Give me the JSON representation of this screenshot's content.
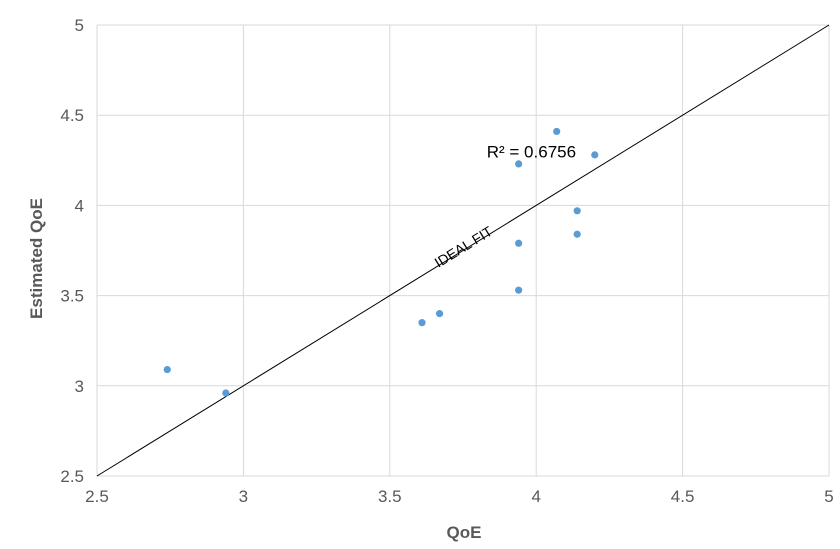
{
  "chart_data": {
    "type": "scatter",
    "xlabel": "QoE",
    "ylabel": "Estimated QoE",
    "xlim": [
      2.5,
      5
    ],
    "ylim": [
      2.5,
      5
    ],
    "x_ticks": [
      "2.5",
      "3",
      "3.5",
      "4",
      "4.5",
      "5"
    ],
    "y_ticks": [
      "2.5",
      "3",
      "3.5",
      "4",
      "4.5",
      "5"
    ],
    "grid": true,
    "legend": "none",
    "colors": {
      "points": "#5B9BD5",
      "grid": "#D9D9D9",
      "ideal_line": "#000000"
    },
    "series": [
      {
        "points": [
          {
            "x": 2.74,
            "y": 3.09
          },
          {
            "x": 2.94,
            "y": 2.96
          },
          {
            "x": 3.61,
            "y": 3.35
          },
          {
            "x": 3.67,
            "y": 3.4
          },
          {
            "x": 3.94,
            "y": 3.53
          },
          {
            "x": 3.94,
            "y": 3.79
          },
          {
            "x": 3.94,
            "y": 4.23
          },
          {
            "x": 4.07,
            "y": 4.41
          },
          {
            "x": 4.14,
            "y": 3.97
          },
          {
            "x": 4.14,
            "y": 3.84
          },
          {
            "x": 4.2,
            "y": 4.28
          }
        ]
      }
    ],
    "ideal_line": {
      "from": [
        2.5,
        2.5
      ],
      "to": [
        5,
        5
      ],
      "label": "IDEAL FIT"
    },
    "annotations": [
      {
        "text": "R² = 0.6756",
        "x": 3.97,
        "y": 4.3
      }
    ]
  }
}
